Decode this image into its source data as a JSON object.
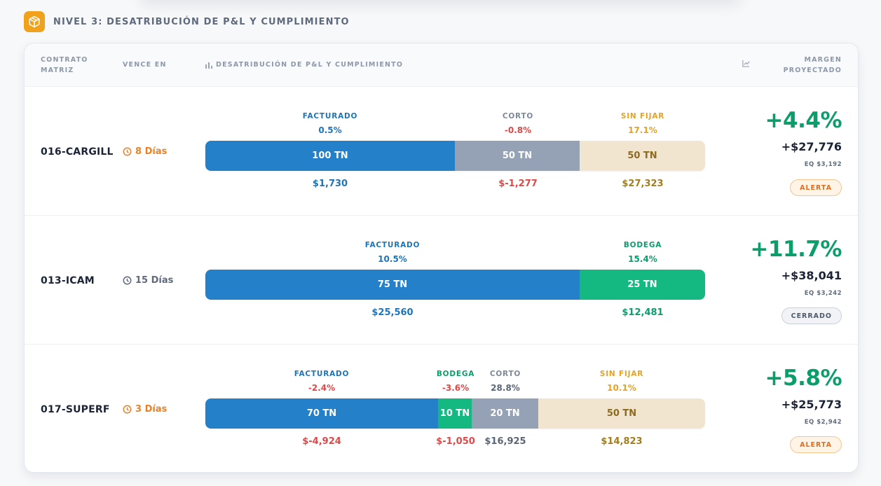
{
  "header": {
    "title": "NIVEL 3: DESATRIBUCIÓN DE P&L Y CUMPLIMIENTO",
    "icon": "box-icon",
    "icon_color": "#f0a21c"
  },
  "table": {
    "columns": {
      "contrato": "CONTRATO MATRIZ",
      "vence": "VENCE EN",
      "distribucion": "DESATRIBUCIÓN DE P&L Y CUMPLIMIENTO",
      "margen": "MARGEN PROYECTADO"
    },
    "rows": [
      {
        "contract": "016-CARGILL",
        "vence": "8 Días",
        "segments": [
          {
            "name": "FACTURADO",
            "pct": "0.5%",
            "tons": "100 TN",
            "amount": "$1,730"
          },
          {
            "name": "CORTO",
            "pct": "-0.8%",
            "tons": "50 TN",
            "amount": "$-1,277"
          },
          {
            "name": "SIN FIJAR",
            "pct": "17.1%",
            "tons": "50 TN",
            "amount": "$27,323"
          }
        ],
        "margin_pct": "+4.4%",
        "margin_usd": "+$27,776",
        "margin_eq": "EQ $3,192",
        "status": "ALERTA"
      },
      {
        "contract": "013-ICAM",
        "vence": "15 Días",
        "segments": [
          {
            "name": "FACTURADO",
            "pct": "10.5%",
            "tons": "75 TN",
            "amount": "$25,560"
          },
          {
            "name": "BODEGA",
            "pct": "15.4%",
            "tons": "25 TN",
            "amount": "$12,481"
          }
        ],
        "margin_pct": "+11.7%",
        "margin_usd": "+$38,041",
        "margin_eq": "EQ $3,242",
        "status": "CERRADO"
      },
      {
        "contract": "017-SUPERF",
        "vence": "3 Días",
        "segments": [
          {
            "name": "FACTURADO",
            "pct": "-2.4%",
            "tons": "70 TN",
            "amount": "$-4,924"
          },
          {
            "name": "BODEGA",
            "pct": "-3.6%",
            "tons": "10 TN",
            "amount": "$-1,050"
          },
          {
            "name": "CORTO",
            "pct": "28.8%",
            "tons": "20 TN",
            "amount": "$16,925"
          },
          {
            "name": "SIN FIJAR",
            "pct": "10.1%",
            "tons": "50 TN",
            "amount": "$14,823"
          }
        ],
        "margin_pct": "+5.8%",
        "margin_usd": "+$25,773",
        "margin_eq": "EQ $2,942",
        "status": "ALERTA"
      }
    ]
  },
  "colors": {
    "facturado": "#2480c9",
    "corto": "#95a2b5",
    "sin_fijar": "#f2e5cf",
    "bodega": "#13b981",
    "positive": "#0b9d6a",
    "negative": "#e04848"
  }
}
